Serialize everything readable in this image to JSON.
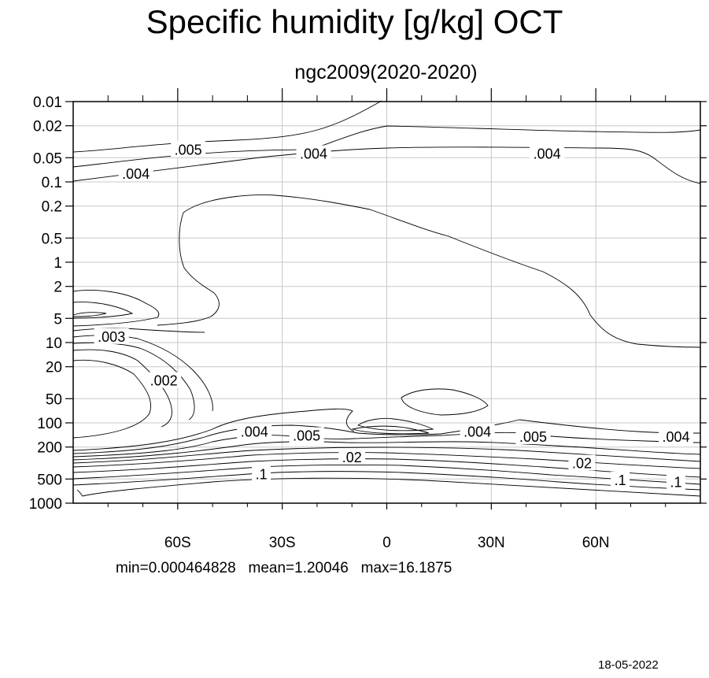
{
  "chart_data": {
    "type": "contour",
    "title": "Specific humidity [g/kg] OCT",
    "subtitle": "ngc2009(2020-2020)",
    "x_axis": {
      "ticks": [
        {
          "value": -60,
          "label": "60S"
        },
        {
          "value": -30,
          "label": "30S"
        },
        {
          "value": 0,
          "label": "0"
        },
        {
          "value": 30,
          "label": "30N"
        },
        {
          "value": 60,
          "label": "60N"
        }
      ],
      "range": [
        -90,
        90
      ]
    },
    "y_axis": {
      "scale": "log",
      "inverted": true,
      "range": [
        0.01,
        1000
      ],
      "ticks": [
        {
          "value": 0.01,
          "label": "0.01"
        },
        {
          "value": 0.02,
          "label": "0.02"
        },
        {
          "value": 0.05,
          "label": "0.05"
        },
        {
          "value": 0.1,
          "label": "0.1"
        },
        {
          "value": 0.2,
          "label": "0.2"
        },
        {
          "value": 0.5,
          "label": "0.5"
        },
        {
          "value": 1,
          "label": "1"
        },
        {
          "value": 2,
          "label": "2"
        },
        {
          "value": 5,
          "label": "5"
        },
        {
          "value": 10,
          "label": "10"
        },
        {
          "value": 20,
          "label": "20"
        },
        {
          "value": 50,
          "label": "50"
        },
        {
          "value": 100,
          "label": "100"
        },
        {
          "value": 200,
          "label": "200"
        },
        {
          "value": 500,
          "label": "500"
        },
        {
          "value": 1000,
          "label": "1000"
        }
      ]
    },
    "grid": true,
    "contour_labels": [
      {
        "text": ".005",
        "lat": -57,
        "p": 0.04
      },
      {
        "text": ".004",
        "lat": -72,
        "p": 0.08
      },
      {
        "text": ".004",
        "lat": -21,
        "p": 0.045
      },
      {
        "text": ".004",
        "lat": 46,
        "p": 0.045
      },
      {
        "text": ".003",
        "lat": -79,
        "p": 8.5
      },
      {
        "text": ".002",
        "lat": -64,
        "p": 30
      },
      {
        "text": ".004",
        "lat": -38,
        "p": 130
      },
      {
        "text": ".005",
        "lat": -23,
        "p": 145
      },
      {
        "text": ".004",
        "lat": 26,
        "p": 130
      },
      {
        "text": ".005",
        "lat": 42,
        "p": 150
      },
      {
        "text": ".004",
        "lat": 83,
        "p": 150
      },
      {
        "text": ".02",
        "lat": -10,
        "p": 270
      },
      {
        "text": ".02",
        "lat": 56,
        "p": 320
      },
      {
        "text": ".1",
        "lat": -36,
        "p": 440
      },
      {
        "text": ".1",
        "lat": 67,
        "p": 520
      },
      {
        "text": ".1",
        "lat": 83,
        "p": 550
      }
    ],
    "stats": {
      "min": "min=0.000464828",
      "mean": "mean=1.20046",
      "max": "max=16.1875"
    },
    "date": "18-05-2022"
  }
}
